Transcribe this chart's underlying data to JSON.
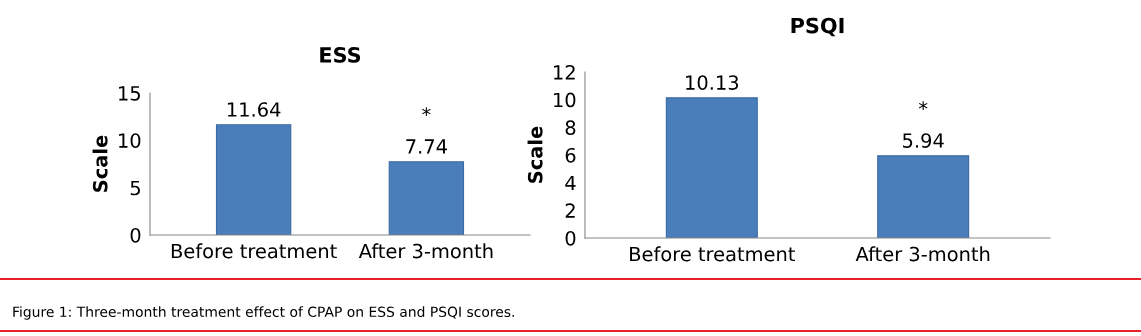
{
  "chart_data": [
    {
      "type": "bar",
      "title": "ESS",
      "ylabel": "Scale",
      "categories": [
        "Before treatment",
        "After 3-month"
      ],
      "values": [
        11.64,
        7.74
      ],
      "color": "#4a7ebb",
      "data_labels": true,
      "ylim": [
        0,
        15
      ],
      "yticks": [
        0,
        5,
        10,
        15
      ],
      "grid": false,
      "legend": false,
      "annotations": [
        {
          "text": "*",
          "x": "After 3-month",
          "y": 7.74
        },
        "Figure 1: Three-month treatment effect of CPAP on ESS and PSQI scores."
      ]
    },
    {
      "type": "bar",
      "title": "PSQI",
      "ylabel": "Scale",
      "categories": [
        "Before treatment",
        "After 3-month"
      ],
      "values": [
        10.13,
        5.94
      ],
      "color": "#4a7ebb",
      "data_labels": true,
      "ylim": [
        0,
        12
      ],
      "yticks": [
        0,
        2,
        4,
        6,
        8,
        10,
        12
      ],
      "grid": false,
      "legend": false,
      "annotations": [
        {
          "text": "*",
          "x": "After 3-month",
          "y": 5.94
        }
      ]
    }
  ]
}
